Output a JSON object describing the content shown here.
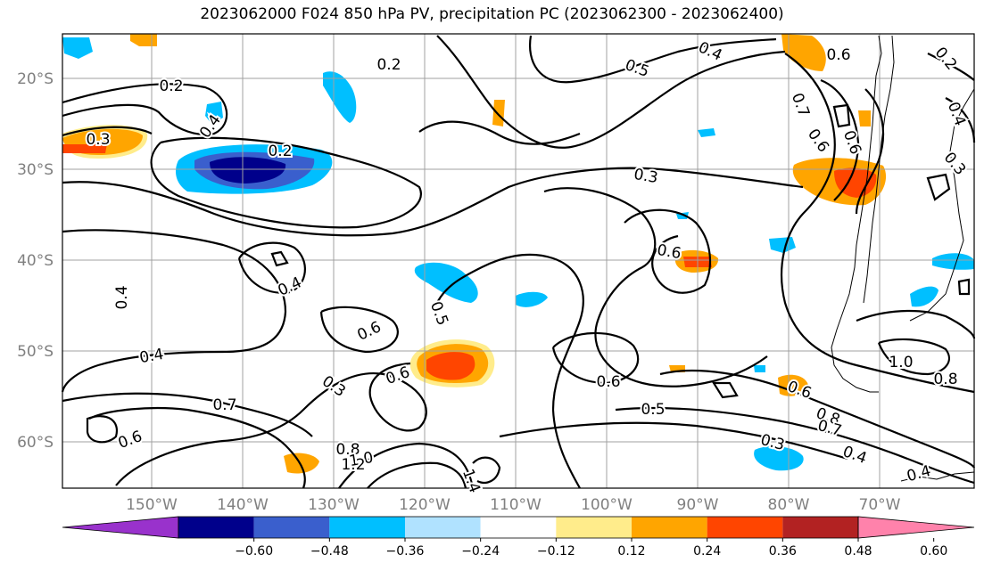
{
  "title": "2023062000 F024 850 hPa PV, precipitation PC (2023062300 - 2023062400)",
  "lat_ticks": [
    "20°S",
    "30°S",
    "40°S",
    "50°S",
    "60°S"
  ],
  "lon_ticks": [
    "150°W",
    "140°W",
    "130°W",
    "120°W",
    "110°W",
    "100°W",
    "90°W",
    "80°W",
    "70°W"
  ],
  "colorbar": {
    "colors": [
      "#9932cc",
      "#00008b",
      "#3a5fcd",
      "#00bfff",
      "#b0e2ff",
      "#ffffff",
      "#ffec8b",
      "#ffa500",
      "#ff4500",
      "#b22222",
      "#ff82ab"
    ],
    "labels": [
      "−0.60",
      "−0.48",
      "−0.36",
      "−0.24",
      "−0.12",
      "0.12",
      "0.24",
      "0.36",
      "0.48",
      "0.60"
    ]
  },
  "contour_labels": [
    {
      "text": "0.2"
    },
    {
      "text": "0.2"
    },
    {
      "text": "0.2"
    },
    {
      "text": "0.3"
    },
    {
      "text": "0.4"
    },
    {
      "text": "0.5"
    },
    {
      "text": "0.4"
    },
    {
      "text": "0.3"
    },
    {
      "text": "0.4"
    },
    {
      "text": "0.4"
    },
    {
      "text": "0.6"
    },
    {
      "text": "0.5"
    },
    {
      "text": "0.6"
    },
    {
      "text": "0.6"
    },
    {
      "text": "0.4"
    },
    {
      "text": "0.3"
    },
    {
      "text": "0.7"
    },
    {
      "text": "0.6"
    },
    {
      "text": "0.8"
    },
    {
      "text": "1.0"
    },
    {
      "text": "1.2"
    },
    {
      "text": "1.4"
    },
    {
      "text": "0.6"
    },
    {
      "text": "0.5"
    },
    {
      "text": "0.6"
    },
    {
      "text": "0.8"
    },
    {
      "text": "0.7"
    },
    {
      "text": "0.3"
    },
    {
      "text": "0.4"
    },
    {
      "text": "0.4"
    },
    {
      "text": "1.0"
    },
    {
      "text": "0.8"
    },
    {
      "text": "0.6"
    },
    {
      "text": "0.7"
    },
    {
      "text": "0.6"
    },
    {
      "text": "0.3"
    },
    {
      "text": "0.4"
    },
    {
      "text": "0.2"
    },
    {
      "text": "0.6"
    }
  ]
}
